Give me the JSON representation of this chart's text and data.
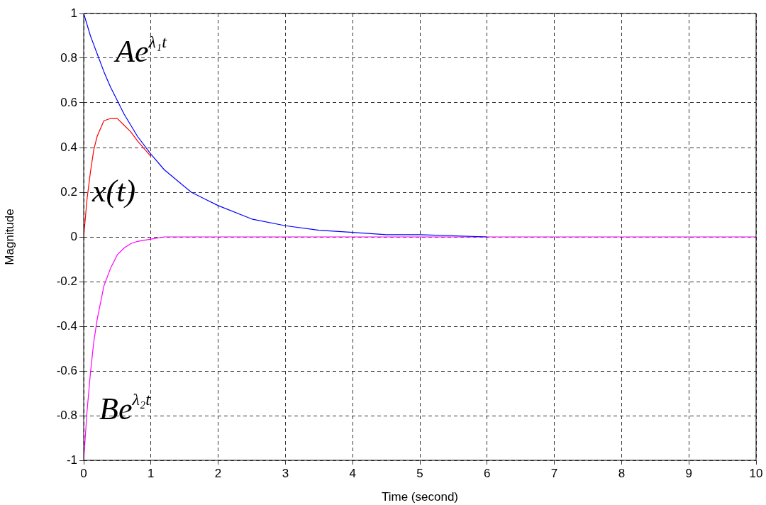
{
  "chart_data": {
    "type": "line",
    "xlabel": "Time (second)",
    "ylabel": "Magnitude",
    "x": [
      0,
      0.05,
      0.1,
      0.15,
      0.2,
      0.3,
      0.4,
      0.5,
      0.6,
      0.7,
      0.8,
      1,
      1.2,
      1.4,
      1.6,
      1.8,
      2,
      2.5,
      3,
      3.5,
      4,
      4.5,
      5,
      6,
      7,
      8,
      9,
      10
    ],
    "series": [
      {
        "name": "Ae$^{λ₁t}$",
        "color": "#0000ff",
        "values": [
          1,
          0.95,
          0.9,
          0.86,
          0.82,
          0.74,
          0.67,
          0.61,
          0.55,
          0.5,
          0.45,
          0.37,
          0.3,
          0.25,
          0.2,
          0.17,
          0.14,
          0.08,
          0.05,
          0.03,
          0.02,
          0.01,
          0.01,
          0,
          null,
          null,
          null,
          null
        ]
      },
      {
        "name": "x(t)",
        "color": "#ff0000",
        "values": [
          0,
          0.17,
          0.29,
          0.39,
          0.45,
          0.52,
          0.53,
          0.53,
          0.5,
          0.47,
          0.43,
          0.36,
          null,
          null,
          null,
          null,
          null,
          null,
          null,
          null,
          null,
          null,
          null,
          null,
          null,
          null,
          null,
          null
        ]
      },
      {
        "name": "Be$^{λ₂t}$",
        "color": "#ff00ff",
        "values": [
          -1,
          -0.78,
          -0.61,
          -0.47,
          -0.37,
          -0.22,
          -0.14,
          -0.08,
          -0.05,
          -0.03,
          -0.02,
          -0.01,
          0,
          0,
          0,
          0,
          0,
          0,
          0,
          0,
          0,
          0,
          0,
          0,
          0,
          0,
          0,
          0
        ]
      }
    ],
    "xlim": [
      0,
      10
    ],
    "xticks": [
      0,
      1,
      2,
      3,
      4,
      5,
      6,
      7,
      8,
      9,
      10
    ],
    "ylim": [
      -1,
      1
    ],
    "yticks": [
      -1,
      -0.8,
      -0.6,
      -0.4,
      -0.2,
      0,
      0.2,
      0.4,
      0.6,
      0.8,
      1
    ],
    "grid": true,
    "legend": false,
    "marker": "none",
    "line_style": "solid"
  }
}
